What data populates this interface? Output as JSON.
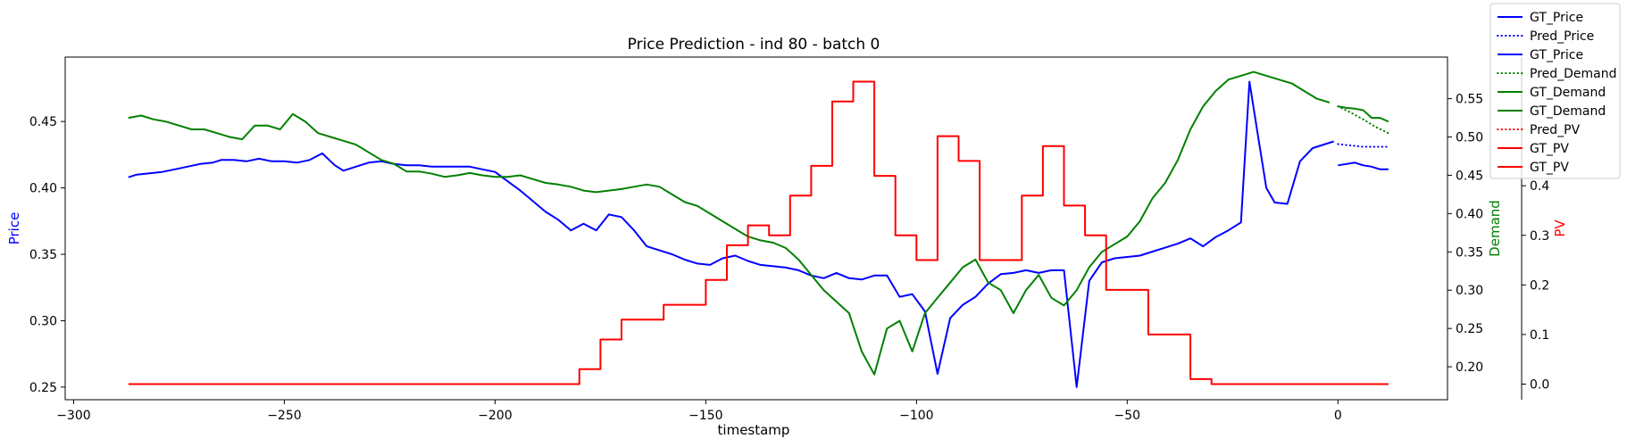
{
  "chart_data": {
    "type": "line",
    "title": "Price Prediction - ind 80 - batch 0",
    "xlabel": "timestamp",
    "grid": false,
    "legend_placement": "top-right",
    "xlim": [
      -302,
      26
    ],
    "x_ticks": [
      -300,
      -250,
      -200,
      -150,
      -100,
      -50,
      0
    ],
    "x_tick_labels": [
      "−300",
      "−250",
      "−200",
      "−150",
      "−100",
      "−50",
      "0"
    ],
    "axes": {
      "price": {
        "label": "Price",
        "color": "#0000ff",
        "side": "left",
        "lim": [
          0.2405,
          0.4985
        ],
        "ticks": [
          0.25,
          0.3,
          0.35,
          0.4,
          0.45
        ],
        "tick_labels": [
          "0.25",
          "0.30",
          "0.35",
          "0.40",
          "0.45"
        ]
      },
      "demand": {
        "label": "Demand",
        "color": "#008000",
        "side": "right",
        "lim": [
          0.157,
          0.6043
        ],
        "ticks": [
          0.2,
          0.25,
          0.3,
          0.35,
          0.4,
          0.45,
          0.5,
          0.55
        ],
        "tick_labels": [
          "0.20",
          "0.25",
          "0.30",
          "0.35",
          "0.40",
          "0.45",
          "0.50",
          "0.55"
        ]
      },
      "pv": {
        "label": "PV",
        "color": "#ff0000",
        "side": "right-outer",
        "lim": [
          -0.0315,
          0.6594
        ],
        "ticks": [
          0.0,
          0.1,
          0.2,
          0.3,
          0.4
        ],
        "tick_labels": [
          "0.0",
          "0.1",
          "0.2",
          "0.3",
          "0.4"
        ]
      }
    },
    "legend": [
      {
        "label": "GT_Price",
        "color": "#0000ff",
        "style": "solid"
      },
      {
        "label": "Pred_Price",
        "color": "#0000ff",
        "style": "dotted"
      },
      {
        "label": "GT_Price",
        "color": "#0000ff",
        "style": "solid"
      },
      {
        "label": "Pred_Demand",
        "color": "#008000",
        "style": "dotted"
      },
      {
        "label": "GT_Demand",
        "color": "#008000",
        "style": "solid"
      },
      {
        "label": "GT_Demand",
        "color": "#008000",
        "style": "solid"
      },
      {
        "label": "Pred_PV",
        "color": "#ff0000",
        "style": "dotted"
      },
      {
        "label": "GT_PV",
        "color": "#ff0000",
        "style": "solid"
      },
      {
        "label": "GT_PV",
        "color": "#ff0000",
        "style": "solid"
      }
    ],
    "series": [
      {
        "name": "GT_Price",
        "axis": "price",
        "color": "#0000ff",
        "style": "solid",
        "kind": "line",
        "x": [
          -287,
          -285,
          -282,
          -279,
          -276,
          -273,
          -270,
          -267,
          -265,
          -262,
          -259,
          -256,
          -253,
          -250,
          -247,
          -244,
          -241,
          -238,
          -236,
          -233,
          -230,
          -227,
          -224,
          -221,
          -218,
          -215,
          -212,
          -209,
          -206,
          -203,
          -200,
          -197,
          -194,
          -191,
          -188,
          -185,
          -182,
          -179,
          -176,
          -173,
          -170,
          -167,
          -164,
          -161,
          -158,
          -155,
          -152,
          -149,
          -146,
          -143,
          -140,
          -137,
          -134,
          -131,
          -128,
          -125,
          -122,
          -119,
          -116,
          -113,
          -110,
          -107,
          -104,
          -101,
          -98,
          -95,
          -92,
          -89,
          -86,
          -83,
          -80,
          -77,
          -74,
          -71,
          -68,
          -65,
          -62,
          -59,
          -56,
          -53,
          -50,
          -47,
          -44,
          -41,
          -38,
          -35,
          -32,
          -29,
          -26,
          -23,
          -21,
          -19,
          -17,
          -15,
          -12,
          -9,
          -6,
          -3,
          -1
        ],
        "y": [
          0.408,
          0.41,
          0.411,
          0.412,
          0.414,
          0.416,
          0.418,
          0.419,
          0.421,
          0.421,
          0.42,
          0.422,
          0.42,
          0.42,
          0.419,
          0.421,
          0.426,
          0.417,
          0.413,
          0.416,
          0.419,
          0.42,
          0.418,
          0.417,
          0.417,
          0.416,
          0.416,
          0.416,
          0.416,
          0.414,
          0.412,
          0.405,
          0.398,
          0.39,
          0.382,
          0.376,
          0.368,
          0.373,
          0.368,
          0.38,
          0.378,
          0.368,
          0.356,
          0.353,
          0.35,
          0.346,
          0.343,
          0.342,
          0.347,
          0.349,
          0.345,
          0.342,
          0.341,
          0.34,
          0.338,
          0.334,
          0.332,
          0.336,
          0.332,
          0.331,
          0.334,
          0.334,
          0.318,
          0.32,
          0.307,
          0.26,
          0.302,
          0.312,
          0.318,
          0.328,
          0.335,
          0.336,
          0.338,
          0.336,
          0.338,
          0.338,
          0.25,
          0.33,
          0.344,
          0.347,
          0.348,
          0.349,
          0.352,
          0.355,
          0.358,
          0.362,
          0.356,
          0.363,
          0.368,
          0.374,
          0.48,
          0.44,
          0.4,
          0.389,
          0.388,
          0.42,
          0.43,
          0.433,
          0.435
        ]
      },
      {
        "name": "Pred_Price",
        "axis": "price",
        "color": "#0000ff",
        "style": "dotted",
        "kind": "line",
        "x": [
          0,
          3,
          6,
          9,
          12
        ],
        "y": [
          0.433,
          0.432,
          0.431,
          0.431,
          0.431
        ]
      },
      {
        "name": "GT_Price",
        "axis": "price",
        "color": "#0000ff",
        "style": "solid",
        "kind": "line",
        "x": [
          0,
          2,
          4,
          6,
          8,
          10,
          12
        ],
        "y": [
          0.417,
          0.418,
          0.419,
          0.417,
          0.416,
          0.414,
          0.414
        ]
      },
      {
        "name": "Pred_Demand",
        "axis": "demand",
        "color": "#008000",
        "style": "dotted",
        "kind": "line",
        "x": [
          0,
          3,
          6,
          9,
          12
        ],
        "y": [
          0.54,
          0.532,
          0.523,
          0.513,
          0.505
        ]
      },
      {
        "name": "GT_Demand",
        "axis": "demand",
        "color": "#008000",
        "style": "solid",
        "kind": "line",
        "x": [
          -287,
          -284,
          -281,
          -278,
          -275,
          -272,
          -269,
          -266,
          -263,
          -260,
          -257,
          -254,
          -251,
          -248,
          -245,
          -242,
          -239,
          -236,
          -233,
          -230,
          -227,
          -224,
          -221,
          -218,
          -215,
          -212,
          -209,
          -206,
          -203,
          -200,
          -197,
          -194,
          -191,
          -188,
          -185,
          -182,
          -179,
          -176,
          -173,
          -170,
          -167,
          -164,
          -161,
          -158,
          -155,
          -152,
          -149,
          -146,
          -143,
          -140,
          -137,
          -134,
          -131,
          -128,
          -125,
          -122,
          -119,
          -116,
          -113,
          -110,
          -107,
          -104,
          -101,
          -98,
          -95,
          -92,
          -89,
          -86,
          -83,
          -80,
          -77,
          -74,
          -71,
          -68,
          -65,
          -62,
          -59,
          -56,
          -53,
          -50,
          -47,
          -44,
          -41,
          -38,
          -35,
          -32,
          -29,
          -26,
          -23,
          -20,
          -17,
          -14,
          -11,
          -8,
          -5,
          -2
        ],
        "y": [
          0.525,
          0.528,
          0.523,
          0.52,
          0.515,
          0.51,
          0.51,
          0.505,
          0.5,
          0.497,
          0.515,
          0.515,
          0.51,
          0.53,
          0.52,
          0.505,
          0.5,
          0.495,
          0.49,
          0.48,
          0.47,
          0.465,
          0.455,
          0.455,
          0.452,
          0.448,
          0.45,
          0.453,
          0.45,
          0.448,
          0.448,
          0.45,
          0.445,
          0.44,
          0.438,
          0.435,
          0.43,
          0.428,
          0.43,
          0.432,
          0.435,
          0.438,
          0.435,
          0.425,
          0.415,
          0.41,
          0.4,
          0.39,
          0.38,
          0.37,
          0.365,
          0.362,
          0.355,
          0.34,
          0.32,
          0.3,
          0.285,
          0.27,
          0.22,
          0.19,
          0.25,
          0.26,
          0.22,
          0.27,
          0.29,
          0.31,
          0.33,
          0.34,
          0.31,
          0.3,
          0.27,
          0.3,
          0.32,
          0.29,
          0.28,
          0.3,
          0.33,
          0.35,
          0.36,
          0.37,
          0.39,
          0.42,
          0.44,
          0.47,
          0.51,
          0.54,
          0.56,
          0.575,
          0.58,
          0.585,
          0.58,
          0.575,
          0.57,
          0.56,
          0.55,
          0.545
        ]
      },
      {
        "name": "GT_Demand",
        "axis": "demand",
        "color": "#008000",
        "style": "solid",
        "kind": "line",
        "x": [
          0,
          2,
          4,
          6,
          8,
          10,
          12
        ],
        "y": [
          0.54,
          0.538,
          0.537,
          0.535,
          0.525,
          0.525,
          0.52
        ]
      },
      {
        "name": "Pred_PV",
        "axis": "pv",
        "color": "#ff0000",
        "style": "dotted",
        "kind": "line",
        "x": [
          0,
          4,
          8,
          12
        ],
        "y": [
          0.0,
          0.0,
          0.0,
          0.0
        ]
      },
      {
        "name": "GT_PV",
        "axis": "pv",
        "color": "#ff0000",
        "style": "solid",
        "kind": "step",
        "x": [
          -287,
          -180,
          -180,
          -175,
          -175,
          -170,
          -170,
          -165,
          -165,
          -160,
          -160,
          -155,
          -155,
          -150,
          -150,
          -145,
          -145,
          -140,
          -140,
          -135,
          -135,
          -130,
          -130,
          -125,
          -125,
          -120,
          -120,
          -115,
          -115,
          -110,
          -110,
          -105,
          -105,
          -100,
          -100,
          -95,
          -95,
          -90,
          -90,
          -85,
          -85,
          -80,
          -80,
          -75,
          -75,
          -70,
          -70,
          -65,
          -65,
          -60,
          -60,
          -55,
          -55,
          -50,
          -50,
          -45,
          -45,
          -40,
          -40,
          -35,
          -35,
          -30,
          -30,
          -25,
          -25,
          -20,
          -20,
          -10,
          -10,
          0
        ],
        "y": [
          0.0,
          0.0,
          0.03,
          0.03,
          0.09,
          0.09,
          0.13,
          0.13,
          0.13,
          0.13,
          0.16,
          0.16,
          0.16,
          0.16,
          0.21,
          0.21,
          0.28,
          0.28,
          0.32,
          0.32,
          0.3,
          0.3,
          0.38,
          0.38,
          0.44,
          0.44,
          0.57,
          0.57,
          0.61,
          0.61,
          0.42,
          0.42,
          0.3,
          0.3,
          0.25,
          0.25,
          0.5,
          0.5,
          0.45,
          0.45,
          0.25,
          0.25,
          0.25,
          0.25,
          0.38,
          0.38,
          0.48,
          0.48,
          0.36,
          0.36,
          0.3,
          0.3,
          0.19,
          0.19,
          0.19,
          0.19,
          0.1,
          0.1,
          0.1,
          0.1,
          0.01,
          0.01,
          0.0,
          0.0,
          0.0,
          0.0,
          0.0,
          0.0,
          0.0,
          0.0
        ]
      },
      {
        "name": "GT_PV",
        "axis": "pv",
        "color": "#ff0000",
        "style": "solid",
        "kind": "line",
        "x": [
          0,
          4,
          8,
          12
        ],
        "y": [
          0.0,
          0.0,
          0.0,
          0.0
        ]
      }
    ]
  }
}
